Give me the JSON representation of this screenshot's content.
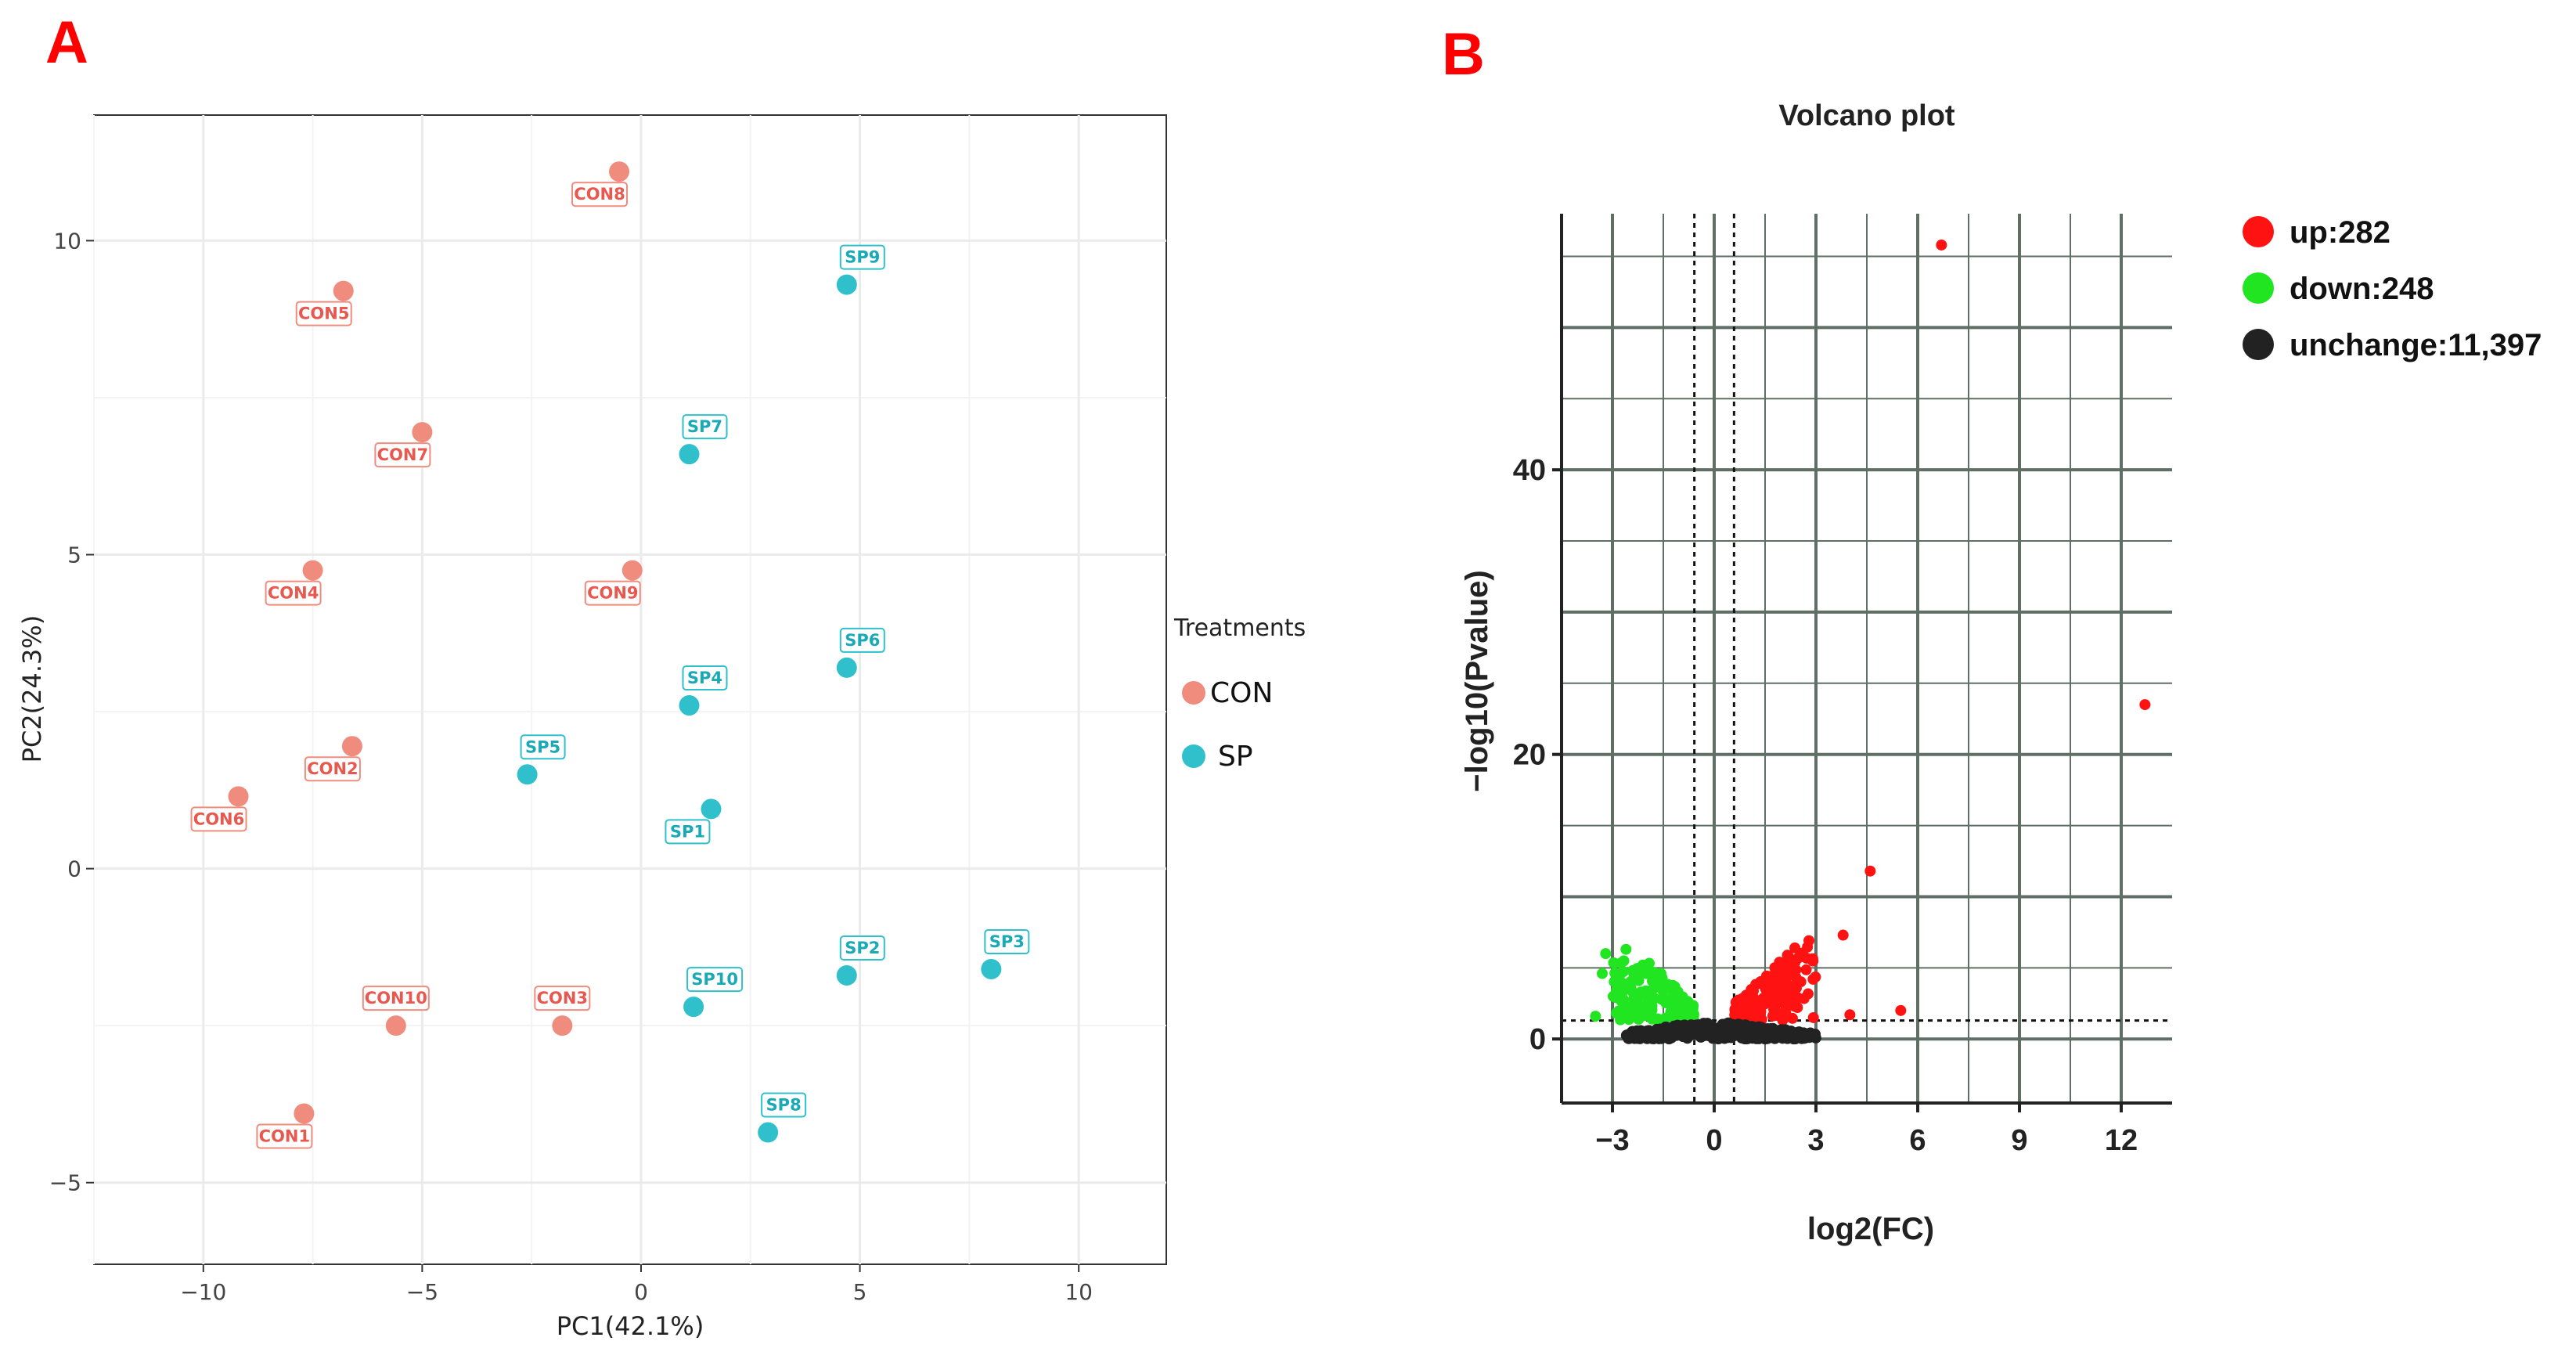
{
  "panels": {
    "a_letter": "A",
    "b_letter": "B"
  },
  "colors": {
    "con": "#f08c7e",
    "sp": "#2fc0cc",
    "con_text": "#e8584e",
    "sp_text": "#1aa9b6",
    "up": "#ff1212",
    "down": "#22e522",
    "unchange": "#222222",
    "pca_grid": "#ebebeb",
    "volcano_grid": "#5f6f66"
  },
  "chart_data": [
    {
      "type": "scatter",
      "title": "",
      "xlabel": "PC1(42.1%)",
      "ylabel": "PC2(24.3%)",
      "xlim": [
        -12.5,
        12
      ],
      "ylim": [
        -6.3,
        12
      ],
      "xticks": [
        -10,
        -5,
        0,
        5,
        10
      ],
      "yticks": [
        -5,
        0,
        5,
        10
      ],
      "xtick_labels": [
        "−10",
        "−5",
        "0",
        "5",
        "10"
      ],
      "ytick_labels": [
        "−5",
        "0",
        "5",
        "10"
      ],
      "grid": true,
      "legend": {
        "title": "Treatments",
        "position": "right",
        "entries": [
          "CON",
          "SP"
        ]
      },
      "series": [
        {
          "name": "CON",
          "points": [
            {
              "label": "CON1",
              "x": -7.7,
              "y": -3.9
            },
            {
              "label": "CON2",
              "x": -6.6,
              "y": 1.95
            },
            {
              "label": "CON3",
              "x": -1.8,
              "y": -2.5
            },
            {
              "label": "CON4",
              "x": -7.5,
              "y": 4.75
            },
            {
              "label": "CON5",
              "x": -6.8,
              "y": 9.2
            },
            {
              "label": "CON6",
              "x": -9.2,
              "y": 1.15
            },
            {
              "label": "CON7",
              "x": -5.0,
              "y": 6.95
            },
            {
              "label": "CON8",
              "x": -0.5,
              "y": 11.1
            },
            {
              "label": "CON9",
              "x": -0.2,
              "y": 4.75
            },
            {
              "label": "CON10",
              "x": -5.6,
              "y": -2.5
            }
          ]
        },
        {
          "name": "SP",
          "points": [
            {
              "label": "SP1",
              "x": 1.6,
              "y": 0.95
            },
            {
              "label": "SP2",
              "x": 4.7,
              "y": -1.7
            },
            {
              "label": "SP3",
              "x": 8.0,
              "y": -1.6
            },
            {
              "label": "SP4",
              "x": 1.1,
              "y": 2.6
            },
            {
              "label": "SP5",
              "x": -2.6,
              "y": 1.5
            },
            {
              "label": "SP6",
              "x": 4.7,
              "y": 3.2
            },
            {
              "label": "SP7",
              "x": 1.1,
              "y": 6.6
            },
            {
              "label": "SP8",
              "x": 2.9,
              "y": -4.2
            },
            {
              "label": "SP9",
              "x": 4.7,
              "y": 9.3
            },
            {
              "label": "SP10",
              "x": 1.2,
              "y": -2.2
            }
          ]
        }
      ]
    },
    {
      "type": "scatter",
      "title": "Volcano plot",
      "xlabel": "log2(FC)",
      "ylabel": "−log10(Pvalue)",
      "xlim": [
        -4.5,
        13.5
      ],
      "ylim": [
        -4.5,
        58
      ],
      "xticks": [
        -3,
        0,
        3,
        6,
        9,
        12
      ],
      "yticks": [
        0,
        20,
        40
      ],
      "xtick_labels": [
        "−3",
        "0",
        "3",
        "6",
        "9",
        "12"
      ],
      "ytick_labels": [
        "0",
        "20",
        "40"
      ],
      "grid": true,
      "thresholds": {
        "log2fc": [
          -0.585,
          0.585
        ],
        "neglog10p": 1.3
      },
      "legend": {
        "position": "right",
        "entries": [
          "up:282",
          "down:248",
          "unchange:11,397"
        ]
      },
      "counts": {
        "up": 282,
        "down": 248,
        "unchange": 11397
      },
      "highlighted_points": [
        {
          "x": 6.7,
          "y": 55.8,
          "group": "up"
        },
        {
          "x": 12.7,
          "y": 23.5,
          "group": "up"
        },
        {
          "x": 4.6,
          "y": 11.8,
          "group": "up"
        },
        {
          "x": 3.8,
          "y": 7.3,
          "group": "up"
        },
        {
          "x": 5.5,
          "y": 2.0,
          "group": "up"
        },
        {
          "x": 4.0,
          "y": 1.7,
          "group": "up"
        },
        {
          "x": -2.6,
          "y": 6.3,
          "group": "down"
        },
        {
          "x": -3.2,
          "y": 6.0,
          "group": "down"
        },
        {
          "x": -3.3,
          "y": 4.6,
          "group": "down"
        },
        {
          "x": -3.5,
          "y": 1.6,
          "group": "down"
        }
      ],
      "clusters": [
        {
          "group": "up",
          "x_range": [
            0.6,
            3.0
          ],
          "y_range": [
            1.3,
            7.5
          ],
          "approx_points": 160
        },
        {
          "group": "down",
          "x_range": [
            -3.0,
            -0.6
          ],
          "y_range": [
            1.3,
            5.5
          ],
          "approx_points": 140
        },
        {
          "group": "unchange",
          "x_range": [
            -2.6,
            3.0
          ],
          "y_range": [
            0,
            1.3
          ],
          "approx_points": 420
        }
      ]
    }
  ]
}
